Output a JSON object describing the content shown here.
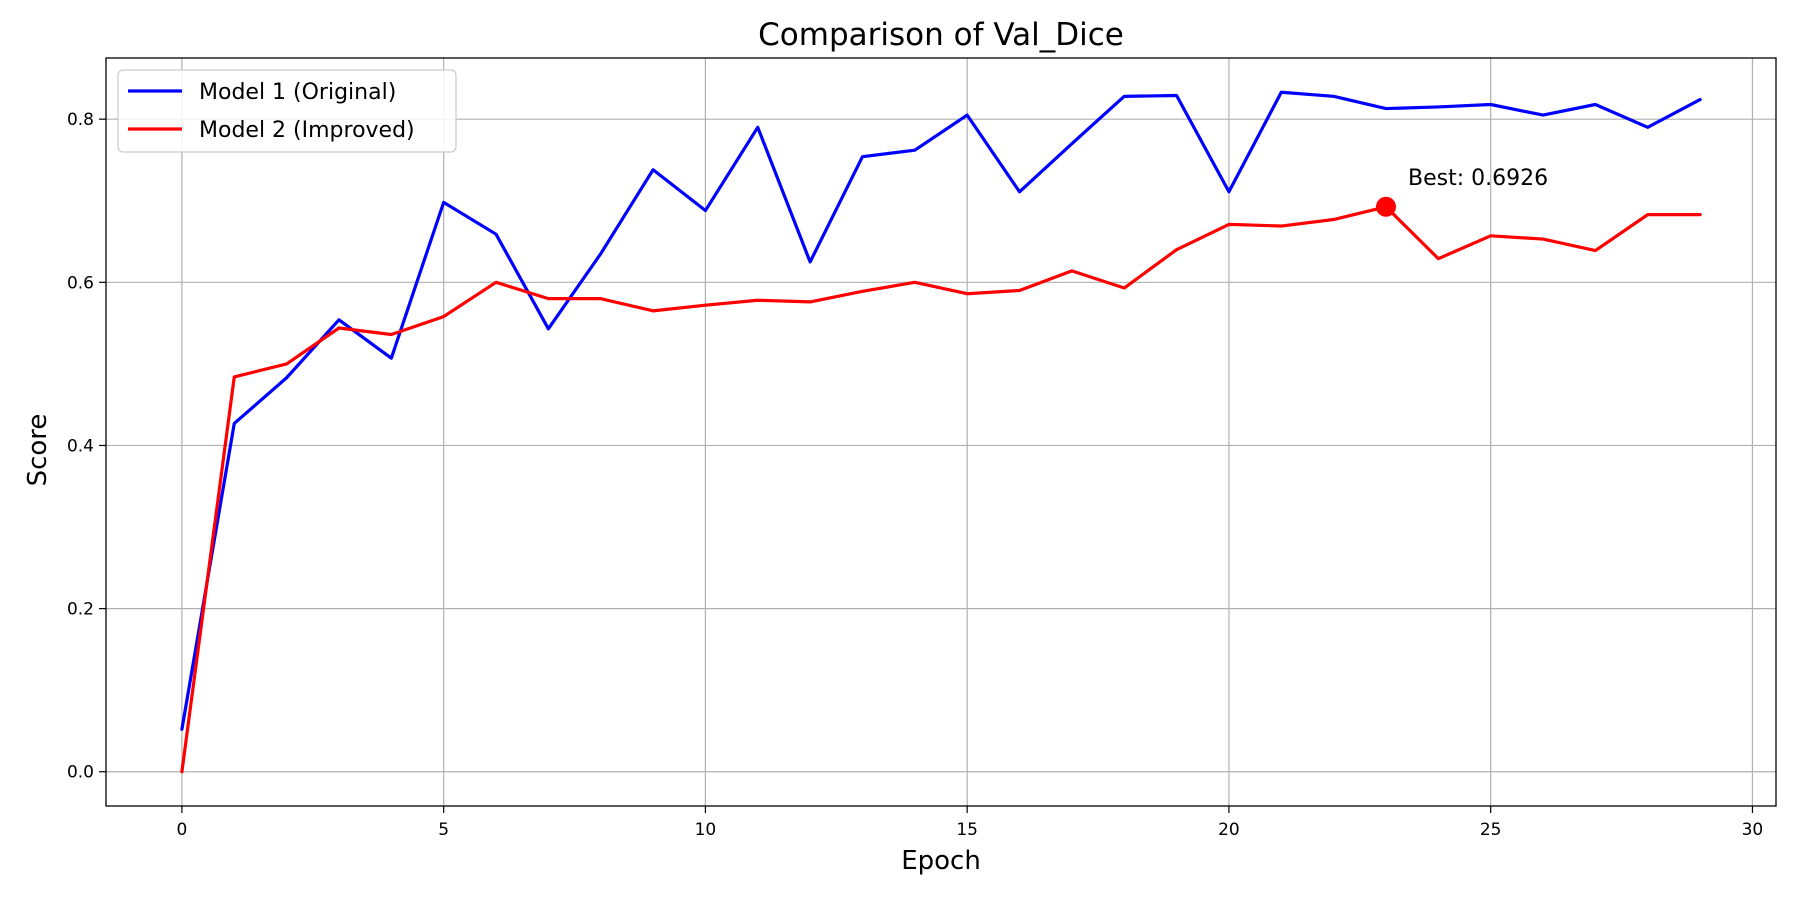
{
  "chart_data": {
    "type": "line",
    "title": "Comparison of Val_Dice",
    "xlabel": "Epoch",
    "ylabel": "Score",
    "xlim": [
      -1.45,
      30.45
    ],
    "ylim": [
      -0.042,
      0.875
    ],
    "xticks": [
      0,
      5,
      10,
      15,
      20,
      25,
      30
    ],
    "yticks": [
      0.0,
      0.2,
      0.4,
      0.6,
      0.8
    ],
    "xtick_labels": [
      "0",
      "5",
      "10",
      "15",
      "20",
      "25",
      "30"
    ],
    "ytick_labels": [
      "0.0",
      "0.2",
      "0.4",
      "0.6",
      "0.8"
    ],
    "grid": true,
    "legend_position": "top-left",
    "x": [
      0,
      1,
      2,
      3,
      4,
      5,
      6,
      7,
      8,
      9,
      10,
      11,
      12,
      13,
      14,
      15,
      16,
      17,
      18,
      19,
      20,
      21,
      22,
      23,
      24,
      25,
      26,
      27,
      28,
      29
    ],
    "series": [
      {
        "name": "Model 1 (Original)",
        "color": "#0000ff",
        "values": [
          0.052,
          0.427,
          0.483,
          0.554,
          0.507,
          0.698,
          0.659,
          0.543,
          0.635,
          0.738,
          0.688,
          0.79,
          0.625,
          0.754,
          0.762,
          0.805,
          0.711,
          0.77,
          0.828,
          0.829,
          0.711,
          0.833,
          0.828,
          0.813,
          0.815,
          0.818,
          0.805,
          0.818,
          0.79,
          0.824
        ]
      },
      {
        "name": "Model 2 (Improved)",
        "color": "#ff0000",
        "values": [
          0.0,
          0.484,
          0.5,
          0.544,
          0.536,
          0.558,
          0.6,
          0.58,
          0.58,
          0.565,
          0.572,
          0.578,
          0.576,
          0.589,
          0.6,
          0.586,
          0.59,
          0.614,
          0.593,
          0.64,
          0.671,
          0.669,
          0.677,
          0.6926,
          0.629,
          0.657,
          0.653,
          0.639,
          0.683,
          0.683
        ]
      }
    ],
    "annotation": {
      "text": "Best: 0.6926",
      "x": 23,
      "y": 0.6926,
      "color": "#ff0000"
    }
  }
}
